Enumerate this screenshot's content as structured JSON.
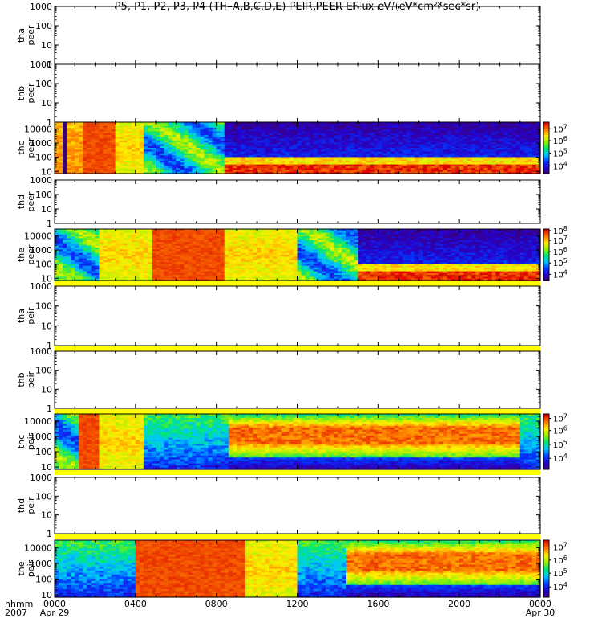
{
  "chart_data": {
    "type": "heatmap",
    "title": "P5, P1, P2, P3, P4 (TH–A,B,C,D,E) PEIR,PEER EFlux eV/(eV*cm²*sec*sr)",
    "x_axis": {
      "start_label": "0000",
      "start_date": "Apr 29",
      "end_label": "0000",
      "end_date": "Apr 30",
      "corner_label_1": "hhmm",
      "corner_label_2": "2007",
      "ticks": [
        "0000",
        "0400",
        "0800",
        "1200",
        "1600",
        "2000",
        "0000"
      ],
      "range_hours": [
        0,
        24
      ]
    },
    "panels": [
      {
        "label_1": "tha",
        "label_2": "peer",
        "yticks": [
          "1",
          "10",
          "100",
          "1000"
        ],
        "ylim": [
          1,
          1000
        ],
        "log": true,
        "data": false,
        "yellow_bar_below": false
      },
      {
        "label_1": "thb",
        "label_2": "peer",
        "yticks": [
          "1",
          "10",
          "100",
          "1000"
        ],
        "ylim": [
          1,
          1000
        ],
        "log": true,
        "data": false,
        "yellow_bar_below": false
      },
      {
        "label_1": "thc",
        "label_2": "peer",
        "yticks": [
          "10",
          "100",
          "1000",
          "10000"
        ],
        "ylim": [
          7,
          30000
        ],
        "log": true,
        "data": true,
        "yellow_bar_below": false,
        "colorbar": {
          "ticks": [
            {
              "exp": "4",
              "frac": 0.15
            },
            {
              "exp": "5",
              "frac": 0.4
            },
            {
              "exp": "6",
              "frac": 0.64
            },
            {
              "exp": "7",
              "frac": 0.87
            }
          ]
        },
        "segments": [
          [
            0,
            0.5,
            "hot"
          ],
          [
            0.5,
            0.65,
            "blk"
          ],
          [
            0.65,
            1.5,
            "hot"
          ],
          [
            1.5,
            3.0,
            "red"
          ],
          [
            3.0,
            4.5,
            "warm"
          ],
          [
            4.5,
            5.0,
            "mixed"
          ],
          [
            5.0,
            8.4,
            "mixed"
          ],
          [
            8.4,
            24.0,
            "banded"
          ]
        ]
      },
      {
        "label_1": "thd",
        "label_2": "peer",
        "yticks": [
          "1",
          "10",
          "100",
          "1000"
        ],
        "ylim": [
          1,
          1000
        ],
        "log": true,
        "data": false,
        "yellow_bar_below": false
      },
      {
        "label_1": "the",
        "label_2": "peer",
        "yticks": [
          "10",
          "100",
          "1000",
          "10000"
        ],
        "ylim": [
          7,
          30000
        ],
        "log": true,
        "data": true,
        "yellow_bar_below": true,
        "colorbar": {
          "ticks": [
            {
              "exp": "4",
              "frac": 0.12
            },
            {
              "exp": "5",
              "frac": 0.34
            },
            {
              "exp": "6",
              "frac": 0.56
            },
            {
              "exp": "7",
              "frac": 0.78
            },
            {
              "exp": "8",
              "frac": 0.97
            }
          ]
        },
        "segments": [
          [
            0,
            2.2,
            "mixed"
          ],
          [
            2.2,
            4.8,
            "warm"
          ],
          [
            4.8,
            8.5,
            "red"
          ],
          [
            8.5,
            12.0,
            "warm"
          ],
          [
            12.0,
            15.0,
            "mixed"
          ],
          [
            15.0,
            24.0,
            "banded"
          ]
        ]
      },
      {
        "label_1": "tha",
        "label_2": "peir",
        "yticks": [
          "1",
          "10",
          "100",
          "1000"
        ],
        "ylim": [
          1,
          1000
        ],
        "log": true,
        "data": false,
        "yellow_bar_below": true
      },
      {
        "label_1": "thb",
        "label_2": "peir",
        "yticks": [
          "1",
          "10",
          "100",
          "1000"
        ],
        "ylim": [
          1,
          1000
        ],
        "log": true,
        "data": false,
        "yellow_bar_below": true
      },
      {
        "label_1": "thc",
        "label_2": "peir",
        "yticks": [
          "10",
          "100",
          "1000",
          "10000"
        ],
        "ylim": [
          7,
          30000
        ],
        "log": true,
        "data": true,
        "yellow_bar_below": true,
        "colorbar": {
          "ticks": [
            {
              "exp": "4",
              "frac": 0.2
            },
            {
              "exp": "5",
              "frac": 0.45
            },
            {
              "exp": "6",
              "frac": 0.7
            },
            {
              "exp": "7",
              "frac": 0.92
            }
          ]
        },
        "segments": [
          [
            0,
            1.3,
            "mixed"
          ],
          [
            1.3,
            2.2,
            "red"
          ],
          [
            2.2,
            4.5,
            "warm"
          ],
          [
            4.5,
            7.5,
            "cool"
          ],
          [
            7.5,
            8.7,
            "cool"
          ],
          [
            8.7,
            23.0,
            "ionband"
          ],
          [
            23.0,
            24.0,
            "cool"
          ]
        ]
      },
      {
        "label_1": "thd",
        "label_2": "peir",
        "yticks": [
          "1",
          "10",
          "100",
          "1000"
        ],
        "ylim": [
          1,
          1000
        ],
        "log": true,
        "data": false,
        "yellow_bar_below": true
      },
      {
        "label_1": "the",
        "label_2": "peir",
        "yticks": [
          "10",
          "100",
          "1000",
          "10000"
        ],
        "ylim": [
          7,
          30000
        ],
        "log": true,
        "data": true,
        "yellow_bar_below": false,
        "colorbar": {
          "ticks": [
            {
              "exp": "4",
              "frac": 0.18
            },
            {
              "exp": "5",
              "frac": 0.42
            },
            {
              "exp": "6",
              "frac": 0.65
            },
            {
              "exp": "7",
              "frac": 0.88
            }
          ]
        },
        "segments": [
          [
            0,
            4.0,
            "cool"
          ],
          [
            4.0,
            9.5,
            "red"
          ],
          [
            9.5,
            12.0,
            "warm"
          ],
          [
            12.0,
            14.5,
            "cool"
          ],
          [
            14.5,
            24.0,
            "ionband"
          ]
        ]
      }
    ]
  }
}
